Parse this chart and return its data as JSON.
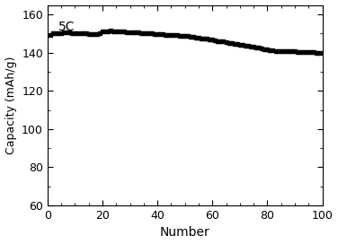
{
  "title": "",
  "annotation": "5C",
  "xlabel": "Number",
  "ylabel": "Capacity (mAh/g)",
  "xlim": [
    0,
    100
  ],
  "ylim": [
    60,
    165
  ],
  "yticks": [
    60,
    80,
    100,
    120,
    140,
    160
  ],
  "xticks": [
    0,
    20,
    40,
    60,
    80,
    100
  ],
  "line_color": "#000000",
  "background_color": "#ffffff",
  "annotation_color": "#000000",
  "xlabel_color": "#000000",
  "ylabel_color": "#000000",
  "x": [
    1,
    2,
    3,
    4,
    5,
    6,
    7,
    8,
    9,
    10,
    11,
    12,
    13,
    14,
    15,
    16,
    17,
    18,
    19,
    20,
    21,
    22,
    23,
    24,
    25,
    26,
    27,
    28,
    29,
    30,
    31,
    32,
    33,
    34,
    35,
    36,
    37,
    38,
    39,
    40,
    41,
    42,
    43,
    44,
    45,
    46,
    47,
    48,
    49,
    50,
    51,
    52,
    53,
    54,
    55,
    56,
    57,
    58,
    59,
    60,
    61,
    62,
    63,
    64,
    65,
    66,
    67,
    68,
    69,
    70,
    71,
    72,
    73,
    74,
    75,
    76,
    77,
    78,
    79,
    80,
    81,
    82,
    83,
    84,
    85,
    86,
    87,
    88,
    89,
    90,
    91,
    92,
    93,
    94,
    95,
    96,
    97,
    98,
    99,
    100
  ],
  "y": [
    149.5,
    150.0,
    150.2,
    150.3,
    150.4,
    150.5,
    150.5,
    150.5,
    150.4,
    150.4,
    150.3,
    150.2,
    150.1,
    150.0,
    149.8,
    149.7,
    149.8,
    149.9,
    150.0,
    151.0,
    151.2,
    151.3,
    151.5,
    151.4,
    151.3,
    151.2,
    151.1,
    151.0,
    150.9,
    150.8,
    150.7,
    150.6,
    150.5,
    150.4,
    150.3,
    150.2,
    150.1,
    150.0,
    149.9,
    149.8,
    149.7,
    149.6,
    149.5,
    149.4,
    149.3,
    149.2,
    149.1,
    149.0,
    148.9,
    148.8,
    148.6,
    148.4,
    148.2,
    148.0,
    147.8,
    147.6,
    147.4,
    147.2,
    147.0,
    146.8,
    146.5,
    146.2,
    146.0,
    145.8,
    145.5,
    145.2,
    145.0,
    144.8,
    144.5,
    144.3,
    144.0,
    143.8,
    143.5,
    143.3,
    143.0,
    142.8,
    142.5,
    142.3,
    142.0,
    141.8,
    141.5,
    141.3,
    141.0,
    141.0,
    141.0,
    141.0,
    140.8,
    140.8,
    140.7,
    140.7,
    140.5,
    140.5,
    140.4,
    140.3,
    140.3,
    140.2,
    140.2,
    140.1,
    140.1,
    140.0
  ]
}
